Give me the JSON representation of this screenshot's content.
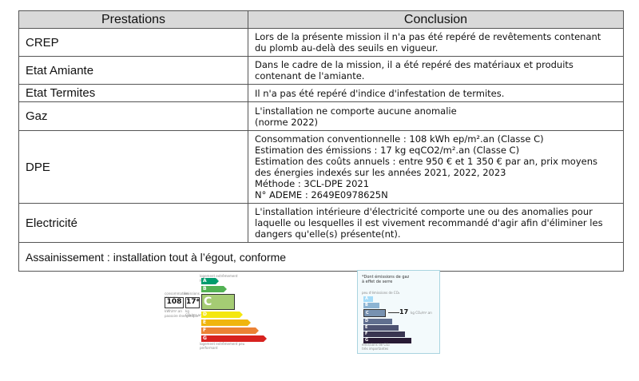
{
  "table": {
    "headers": {
      "prestations": "Prestations",
      "conclusion": "Conclusion"
    },
    "rows": [
      {
        "name": "CREP",
        "text": "Lors de la présente mission il n'a pas été repéré de revêtements contenant\ndu plomb au-delà des seuils en vigueur."
      },
      {
        "name": "Etat Amiante",
        "text": "Dans le cadre de la mission, il a été repéré des matériaux et produits\ncontenant de l'amiante."
      },
      {
        "name": "Etat Termites",
        "text": "Il n'a pas été repéré d'indice d'infestation de termites."
      },
      {
        "name": "Gaz",
        "text": "L'installation ne comporte aucune anomalie\n(norme 2022)"
      },
      {
        "name": "DPE",
        "text": "Consommation conventionnelle : 108 kWh ep/m².an (Classe C)\nEstimation des émissions : 17 kg eqCO2/m².an (Classe C)\nEstimation des coûts annuels : entre 950 € et 1 350 € par an, prix moyens\ndes énergies indexés sur les années 2021, 2022, 2023\nMéthode : 3CL-DPE 2021\nN° ADEME : 2649E0978625N"
      },
      {
        "name": "Electricité",
        "text": "L'installation intérieure d'électricité comporte une ou des anomalies pour\nlaquelle ou lesquelles il est vivement recommandé d'agir afin d'éliminer les\ndangers qu'elle(s) présente(nt)."
      }
    ],
    "footer": "Assainissement : installation tout à l’égout, conforme"
  },
  "dpe_label": {
    "consumption_value": "108",
    "emission_value": "17*",
    "active_class": "C",
    "classes": [
      {
        "letter": "A",
        "color": "#009c6d"
      },
      {
        "letter": "B",
        "color": "#52b153"
      },
      {
        "letter": "C",
        "color": "#a5cc74"
      },
      {
        "letter": "D",
        "color": "#f4e70f"
      },
      {
        "letter": "E",
        "color": "#f0b50f"
      },
      {
        "letter": "F",
        "color": "#eb8235"
      },
      {
        "letter": "G",
        "color": "#d7221f"
      }
    ]
  },
  "ges_label": {
    "title": "*Dont émissions de gaz\nà effet de serre",
    "value": "17",
    "active_class": "C",
    "footer_note": "émissions de CO₂\ntrès importantes",
    "classes": [
      {
        "letter": "A",
        "color": "#a4dbf8"
      },
      {
        "letter": "B",
        "color": "#8cb4d3"
      },
      {
        "letter": "C",
        "color": "#7792b1"
      },
      {
        "letter": "D",
        "color": "#606f8f"
      },
      {
        "letter": "E",
        "color": "#4d5271"
      },
      {
        "letter": "F",
        "color": "#393551"
      },
      {
        "letter": "G",
        "color": "#281b35"
      }
    ]
  }
}
